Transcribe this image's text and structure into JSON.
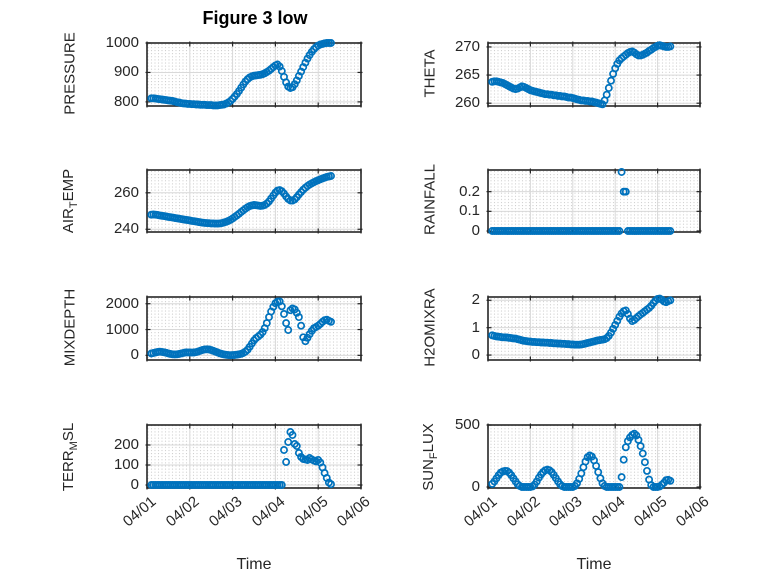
{
  "figure": {
    "title": "Figure 3 low",
    "xlabel": "Time",
    "background": "#ffffff",
    "marker_color": "#0072BD",
    "axis_color": "#262626",
    "grid_color": "#d9d9d9",
    "minor_dot_color": "#c8c8c8",
    "text_color": "#262626"
  },
  "time_axis": {
    "tick_labels": [
      "04/01",
      "04/02",
      "04/03",
      "04/04",
      "04/05",
      "04/06"
    ],
    "tick_values": [
      1,
      2,
      3,
      4,
      5,
      6
    ],
    "xlim": [
      1,
      6
    ],
    "x_format": "April day number, 1.0 = 04/01 00:00"
  },
  "chart_data": [
    {
      "key": "pressure",
      "type": "scatter",
      "row": 0,
      "col": 0,
      "ylabel_text": "PRESSURE",
      "ylabel_parts": [
        {
          "text": "PRESSURE",
          "sub": false
        }
      ],
      "yticks": [
        {
          "v": 800,
          "label": "800"
        },
        {
          "v": 900,
          "label": "900"
        },
        {
          "v": 1000,
          "label": "1000"
        }
      ],
      "ylim": [
        786,
        1000
      ],
      "x_start": 1.1,
      "x_step": 0.05,
      "values": [
        812,
        812,
        811,
        810,
        809,
        808,
        807,
        806,
        805,
        804,
        803,
        801,
        799,
        798,
        796,
        795,
        794,
        793,
        793,
        792,
        792,
        791,
        791,
        790,
        790,
        790,
        789,
        789,
        789,
        788,
        788,
        788,
        789,
        790,
        791,
        794,
        798,
        803,
        810,
        818,
        827,
        837,
        848,
        859,
        869,
        877,
        883,
        887,
        889,
        890,
        891,
        892,
        894,
        897,
        901,
        906,
        912,
        918,
        924,
        927,
        920,
        905,
        885,
        866,
        852,
        847,
        850,
        860,
        873,
        888,
        903,
        918,
        933,
        947,
        959,
        970,
        979,
        986,
        991,
        995,
        997,
        999,
        1000,
        1000,
        1000
      ]
    },
    {
      "key": "theta",
      "type": "scatter",
      "row": 0,
      "col": 1,
      "ylabel_text": "THETA",
      "ylabel_parts": [
        {
          "text": "THETA",
          "sub": false
        }
      ],
      "yticks": [
        {
          "v": 260,
          "label": "260"
        },
        {
          "v": 265,
          "label": "265"
        },
        {
          "v": 270,
          "label": "270"
        }
      ],
      "ylim": [
        259.5,
        270.7
      ],
      "x_start": 1.1,
      "x_step": 0.05,
      "values": [
        263.8,
        263.9,
        263.9,
        263.8,
        263.7,
        263.6,
        263.4,
        263.2,
        263.0,
        262.8,
        262.6,
        262.5,
        262.6,
        262.8,
        263.0,
        262.9,
        262.7,
        262.5,
        262.3,
        262.2,
        262.1,
        262.0,
        261.9,
        261.8,
        261.7,
        261.6,
        261.6,
        261.5,
        261.5,
        261.4,
        261.4,
        261.3,
        261.3,
        261.2,
        261.2,
        261.1,
        261.0,
        261.0,
        260.9,
        260.8,
        260.7,
        260.6,
        260.5,
        260.5,
        260.4,
        260.4,
        260.3,
        260.3,
        260.2,
        260.1,
        260.0,
        259.9,
        259.8,
        260.5,
        261.5,
        262.7,
        264.0,
        265.2,
        266.2,
        267.0,
        267.6,
        268.0,
        268.3,
        268.6,
        268.9,
        269.1,
        269.2,
        269.0,
        268.7,
        268.5,
        268.5,
        268.6,
        268.8,
        269.0,
        269.3,
        269.5,
        269.8,
        270.0,
        270.2,
        270.3,
        270.2,
        270.1,
        270.0,
        270.0,
        270.1
      ]
    },
    {
      "key": "air-temp",
      "type": "scatter",
      "row": 1,
      "col": 0,
      "ylabel_text": "AIR_TEMP",
      "ylabel_parts": [
        {
          "text": "AIR",
          "sub": false
        },
        {
          "text": "T",
          "sub": true
        },
        {
          "text": "EMP",
          "sub": false
        }
      ],
      "yticks": [
        {
          "v": 240,
          "label": "240"
        },
        {
          "v": 260,
          "label": "260"
        }
      ],
      "ylim": [
        238.5,
        272.5
      ],
      "x_start": 1.1,
      "x_step": 0.05,
      "values": [
        248.0,
        248.1,
        248.0,
        247.8,
        247.6,
        247.4,
        247.2,
        247.0,
        246.8,
        246.6,
        246.4,
        246.2,
        246.0,
        245.8,
        245.6,
        245.4,
        245.2,
        245.0,
        244.8,
        244.6,
        244.4,
        244.2,
        244.0,
        243.8,
        243.6,
        243.5,
        243.4,
        243.3,
        243.2,
        243.2,
        243.1,
        243.1,
        243.2,
        243.4,
        243.7,
        244.1,
        244.6,
        245.2,
        245.9,
        246.7,
        247.6,
        248.5,
        249.5,
        250.4,
        251.3,
        252.1,
        252.7,
        253.1,
        253.3,
        253.2,
        253.0,
        252.8,
        252.9,
        253.3,
        254.1,
        255.3,
        256.8,
        258.5,
        260.1,
        261.2,
        261.5,
        260.9,
        259.6,
        258.0,
        256.6,
        255.8,
        255.7,
        256.4,
        257.6,
        259.0,
        260.4,
        261.7,
        262.8,
        263.7,
        264.5,
        265.2,
        265.8,
        266.4,
        266.9,
        267.4,
        267.9,
        268.3,
        268.7,
        269.0,
        269.2
      ]
    },
    {
      "key": "rainfall",
      "type": "scatter",
      "row": 1,
      "col": 1,
      "ylabel_text": "RAINFALL",
      "ylabel_parts": [
        {
          "text": "RAINFALL",
          "sub": false
        }
      ],
      "yticks": [
        {
          "v": 0,
          "label": "0"
        },
        {
          "v": 0.1,
          "label": "0.1"
        },
        {
          "v": 0.2,
          "label": "0.2"
        }
      ],
      "ylim": [
        -0.005,
        0.31
      ],
      "x_start": 1.1,
      "x_step": 0.05,
      "values": [
        0,
        0,
        0,
        0,
        0,
        0,
        0,
        0,
        0,
        0,
        0,
        0,
        0,
        0,
        0,
        0,
        0,
        0,
        0,
        0,
        0,
        0,
        0,
        0,
        0,
        0,
        0,
        0,
        0,
        0,
        0,
        0,
        0,
        0,
        0,
        0,
        0,
        0,
        0,
        0,
        0,
        0,
        0,
        0,
        0,
        0,
        0,
        0,
        0,
        0,
        0,
        0,
        0,
        0,
        0,
        0,
        0,
        0,
        0,
        0,
        0,
        0.3,
        0.2,
        0.2,
        0,
        0,
        0,
        0,
        0,
        0,
        0,
        0,
        0,
        0,
        0,
        0,
        0,
        0,
        0,
        0,
        0,
        0,
        0,
        0,
        0
      ]
    },
    {
      "key": "mixdepth",
      "type": "scatter",
      "row": 2,
      "col": 0,
      "ylabel_text": "MIXDEPTH",
      "ylabel_parts": [
        {
          "text": "MIXDEPTH",
          "sub": false
        }
      ],
      "yticks": [
        {
          "v": 0,
          "label": "0"
        },
        {
          "v": 1000,
          "label": "1000"
        },
        {
          "v": 2000,
          "label": "2000"
        }
      ],
      "ylim": [
        -180,
        2260
      ],
      "x_start": 1.1,
      "x_step": 0.05,
      "values": [
        70,
        90,
        110,
        130,
        140,
        135,
        120,
        100,
        75,
        55,
        40,
        35,
        40,
        55,
        75,
        95,
        110,
        115,
        110,
        105,
        110,
        125,
        150,
        180,
        210,
        230,
        235,
        225,
        205,
        175,
        140,
        110,
        80,
        55,
        35,
        20,
        10,
        5,
        10,
        15,
        25,
        40,
        60,
        90,
        140,
        220,
        330,
        460,
        580,
        670,
        730,
        800,
        900,
        1050,
        1250,
        1480,
        1700,
        1880,
        2020,
        2080,
        2090,
        1900,
        1600,
        1250,
        980,
        1750,
        1820,
        1780,
        1650,
        1480,
        1150,
        700,
        550,
        680,
        820,
        950,
        1050,
        1100,
        1150,
        1220,
        1300,
        1360,
        1380,
        1340,
        1300
      ]
    },
    {
      "key": "h2omixra",
      "type": "scatter",
      "row": 2,
      "col": 1,
      "ylabel_text": "H2OMIXRA",
      "ylabel_parts": [
        {
          "text": "H2OMIXRA",
          "sub": false
        }
      ],
      "yticks": [
        {
          "v": 0,
          "label": "0"
        },
        {
          "v": 1,
          "label": "1"
        },
        {
          "v": 2,
          "label": "2"
        }
      ],
      "ylim": [
        -0.18,
        2.12
      ],
      "x_start": 1.1,
      "x_step": 0.05,
      "values": [
        0.72,
        0.7,
        0.68,
        0.67,
        0.66,
        0.65,
        0.65,
        0.64,
        0.63,
        0.62,
        0.61,
        0.6,
        0.58,
        0.56,
        0.54,
        0.52,
        0.51,
        0.5,
        0.49,
        0.48,
        0.48,
        0.47,
        0.47,
        0.46,
        0.46,
        0.45,
        0.45,
        0.44,
        0.44,
        0.43,
        0.43,
        0.42,
        0.42,
        0.41,
        0.41,
        0.4,
        0.4,
        0.39,
        0.39,
        0.38,
        0.38,
        0.38,
        0.39,
        0.4,
        0.42,
        0.44,
        0.46,
        0.48,
        0.5,
        0.52,
        0.54,
        0.55,
        0.56,
        0.58,
        0.62,
        0.7,
        0.82,
        0.96,
        1.1,
        1.25,
        1.4,
        1.52,
        1.6,
        1.63,
        1.5,
        1.33,
        1.24,
        1.28,
        1.35,
        1.42,
        1.48,
        1.54,
        1.6,
        1.66,
        1.72,
        1.8,
        1.9,
        1.99,
        2.05,
        2.06,
        2.02,
        1.96,
        1.93,
        1.97,
        2.0
      ]
    },
    {
      "key": "terr-msl",
      "type": "scatter",
      "row": 3,
      "col": 0,
      "ylabel_text": "TERR_MSL",
      "ylabel_parts": [
        {
          "text": "TERR",
          "sub": false
        },
        {
          "text": "M",
          "sub": true
        },
        {
          "text": "SL",
          "sub": false
        }
      ],
      "yticks": [
        {
          "v": 0,
          "label": "0"
        },
        {
          "v": 100,
          "label": "100"
        },
        {
          "v": 200,
          "label": "200"
        }
      ],
      "ylim": [
        -15,
        300
      ],
      "x_start": 1.1,
      "x_step": 0.05,
      "values": [
        0,
        0,
        0,
        0,
        0,
        0,
        0,
        0,
        0,
        0,
        0,
        0,
        0,
        0,
        0,
        0,
        0,
        0,
        0,
        0,
        0,
        0,
        0,
        0,
        0,
        0,
        0,
        0,
        0,
        0,
        0,
        0,
        0,
        0,
        0,
        0,
        0,
        0,
        0,
        0,
        0,
        0,
        0,
        0,
        0,
        0,
        0,
        0,
        0,
        0,
        0,
        0,
        0,
        0,
        0,
        0,
        0,
        0,
        0,
        0,
        0,
        0,
        175,
        115,
        215,
        265,
        250,
        205,
        195,
        160,
        140,
        130,
        128,
        125,
        135,
        128,
        122,
        118,
        125,
        112,
        88,
        60,
        35,
        12,
        4
      ]
    },
    {
      "key": "sun-flux",
      "type": "scatter",
      "row": 3,
      "col": 1,
      "ylabel_text": "SUN_FLUX",
      "ylabel_parts": [
        {
          "text": "SUN",
          "sub": false
        },
        {
          "text": "F",
          "sub": true
        },
        {
          "text": "LUX",
          "sub": false
        }
      ],
      "yticks": [
        {
          "v": 0,
          "label": "0"
        },
        {
          "v": 500,
          "label": "500"
        }
      ],
      "ylim": [
        -8,
        500
      ],
      "x_start": 1.1,
      "x_step": 0.05,
      "values": [
        25,
        45,
        70,
        95,
        115,
        125,
        130,
        128,
        115,
        95,
        70,
        45,
        22,
        8,
        0,
        0,
        0,
        0,
        0,
        5,
        20,
        45,
        75,
        100,
        120,
        135,
        140,
        135,
        120,
        98,
        72,
        45,
        22,
        7,
        0,
        0,
        0,
        0,
        0,
        8,
        30,
        65,
        110,
        160,
        205,
        240,
        255,
        245,
        215,
        170,
        120,
        70,
        30,
        8,
        0,
        0,
        0,
        0,
        0,
        0,
        0,
        80,
        220,
        320,
        370,
        400,
        420,
        430,
        415,
        380,
        330,
        270,
        200,
        130,
        60,
        15,
        0,
        0,
        0,
        5,
        18,
        35,
        55,
        58,
        50
      ]
    }
  ]
}
